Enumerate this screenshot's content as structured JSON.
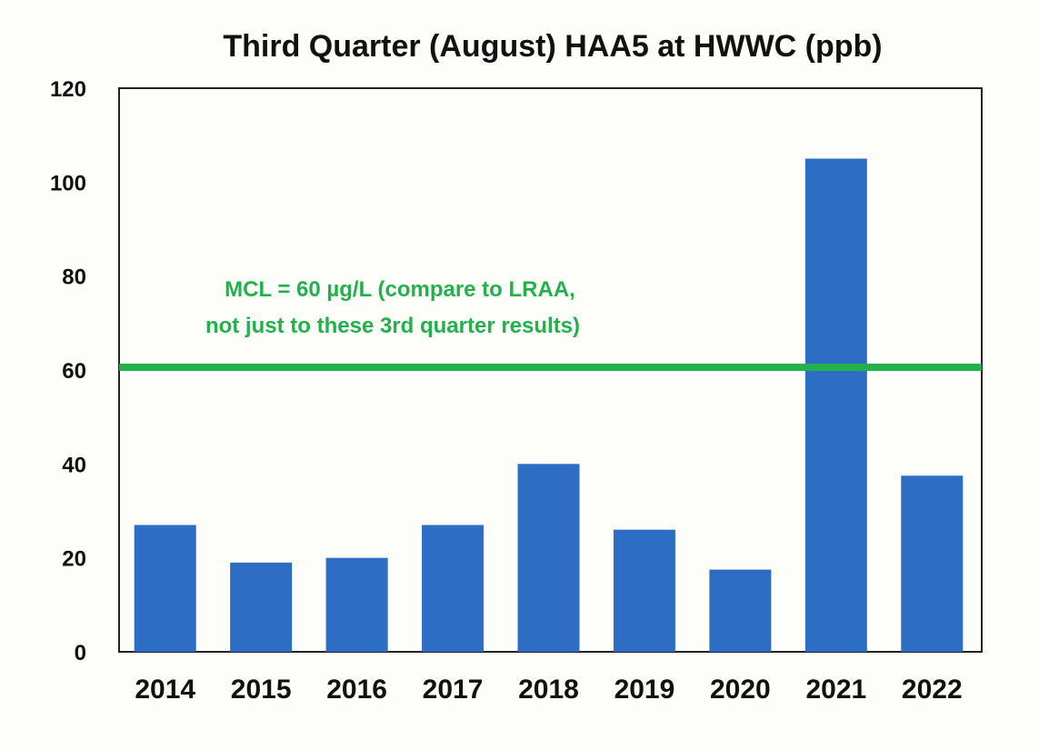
{
  "chart_data": {
    "type": "bar",
    "title": "Third Quarter (August) HAA5 at HWWC (ppb)",
    "xlabel": "",
    "ylabel": "",
    "categories": [
      "2014",
      "2015",
      "2016",
      "2017",
      "2018",
      "2019",
      "2020",
      "2021",
      "2022"
    ],
    "values": [
      27,
      19,
      20,
      27,
      40,
      26,
      17.5,
      105,
      37.5
    ],
    "ylim": [
      0,
      120
    ],
    "yticks": [
      0,
      20,
      40,
      60,
      80,
      100,
      120
    ],
    "grid": false,
    "bar_color": "#2e6dc4",
    "reference_line": {
      "value": 60,
      "color": "#22b14c",
      "label_lines": [
        "MCL = 60 µg/L (compare to LRAA,",
        "not just to these 3rd quarter results)"
      ]
    }
  }
}
